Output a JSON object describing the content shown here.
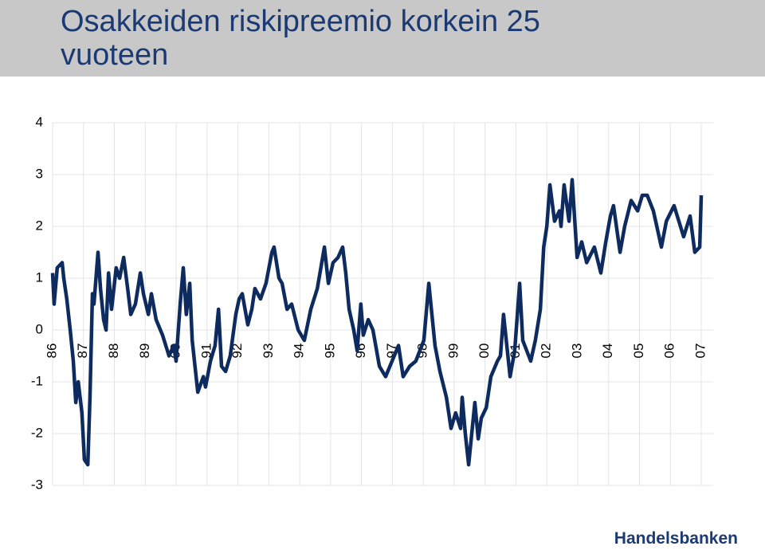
{
  "chart_data": {
    "type": "line",
    "title": "Osakkeiden riskipreemio korkein 25 vuoteen",
    "source": "Handelsbanken",
    "xlim": [
      1986,
      2007
    ],
    "ylim": [
      -3,
      4
    ],
    "xticks": [
      {
        "value": 1986,
        "label": "86"
      },
      {
        "value": 1987,
        "label": "87"
      },
      {
        "value": 1988,
        "label": "88"
      },
      {
        "value": 1989,
        "label": "89"
      },
      {
        "value": 1990,
        "label": "90"
      },
      {
        "value": 1991,
        "label": "91"
      },
      {
        "value": 1992,
        "label": "92"
      },
      {
        "value": 1993,
        "label": "93"
      },
      {
        "value": 1994,
        "label": "94"
      },
      {
        "value": 1995,
        "label": "95"
      },
      {
        "value": 1996,
        "label": "96"
      },
      {
        "value": 1997,
        "label": "97"
      },
      {
        "value": 1998,
        "label": "98"
      },
      {
        "value": 1999,
        "label": "99"
      },
      {
        "value": 2000,
        "label": "00"
      },
      {
        "value": 2001,
        "label": "01"
      },
      {
        "value": 2002,
        "label": "02"
      },
      {
        "value": 2003,
        "label": "03"
      },
      {
        "value": 2004,
        "label": "04"
      },
      {
        "value": 2005,
        "label": "05"
      },
      {
        "value": 2006,
        "label": "06"
      },
      {
        "value": 2007,
        "label": "07"
      }
    ],
    "yticks": [
      -3,
      -2,
      -1,
      0,
      1,
      2,
      3,
      4
    ],
    "grid": true,
    "color": "#0d2b5e",
    "x": [
      1986.0,
      1986.05,
      1986.15,
      1986.31,
      1986.36,
      1986.46,
      1986.57,
      1986.67,
      1986.75,
      1986.83,
      1986.95,
      1987.03,
      1987.14,
      1987.21,
      1987.29,
      1987.34,
      1987.47,
      1987.55,
      1987.65,
      1987.73,
      1987.81,
      1987.91,
      1988.06,
      1988.17,
      1988.3,
      1988.43,
      1988.53,
      1988.68,
      1988.84,
      1988.94,
      1989.1,
      1989.2,
      1989.35,
      1989.56,
      1989.77,
      1989.92,
      1990.0,
      1990.13,
      1990.23,
      1990.33,
      1990.44,
      1990.52,
      1990.7,
      1990.88,
      1990.95,
      1991.11,
      1991.26,
      1991.37,
      1991.47,
      1991.6,
      1991.75,
      1991.93,
      1992.04,
      1992.14,
      1992.32,
      1992.45,
      1992.55,
      1992.73,
      1992.91,
      1993.1,
      1993.17,
      1993.33,
      1993.43,
      1993.59,
      1993.74,
      1993.95,
      1994.15,
      1994.36,
      1994.57,
      1994.8,
      1994.93,
      1995.08,
      1995.24,
      1995.39,
      1995.49,
      1995.6,
      1995.75,
      1995.86,
      1995.98,
      1996.06,
      1996.22,
      1996.37,
      1996.58,
      1996.78,
      1996.99,
      1997.2,
      1997.35,
      1997.56,
      1997.76,
      1998.02,
      1998.18,
      1998.28,
      1998.38,
      1998.54,
      1998.75,
      1998.9,
      1999.05,
      1999.21,
      1999.26,
      1999.36,
      1999.47,
      1999.67,
      1999.78,
      1999.88,
      2000.04,
      2000.19,
      2000.4,
      2000.5,
      2000.6,
      2000.81,
      2000.96,
      2001.12,
      2001.22,
      2001.48,
      2001.63,
      2001.79,
      2001.9,
      2002.0,
      2002.1,
      2002.25,
      2002.41,
      2002.46,
      2002.56,
      2002.72,
      2002.82,
      2002.98,
      2003.13,
      2003.29,
      2003.54,
      2003.75,
      2003.91,
      2004.06,
      2004.16,
      2004.37,
      2004.52,
      2004.73,
      2004.94,
      2005.09,
      2005.25,
      2005.45,
      2005.71,
      2005.87,
      2006.12,
      2006.43,
      2006.64,
      2006.79,
      2006.95,
      2007.0
    ],
    "values": [
      1.1,
      0.5,
      1.2,
      1.3,
      1.0,
      0.6,
      0.0,
      -0.6,
      -1.4,
      -1.0,
      -1.6,
      -2.5,
      -2.6,
      -1.3,
      0.7,
      0.5,
      1.5,
      0.8,
      0.2,
      0.0,
      1.1,
      0.4,
      1.2,
      1.0,
      1.4,
      0.8,
      0.3,
      0.5,
      1.1,
      0.7,
      0.3,
      0.7,
      0.2,
      -0.1,
      -0.5,
      -0.3,
      -0.6,
      0.5,
      1.2,
      0.3,
      0.9,
      -0.2,
      -1.2,
      -0.9,
      -1.1,
      -0.6,
      -0.3,
      0.4,
      -0.7,
      -0.8,
      -0.5,
      0.3,
      0.6,
      0.7,
      0.1,
      0.4,
      0.8,
      0.6,
      0.9,
      1.5,
      1.6,
      1.0,
      0.9,
      0.4,
      0.5,
      0.0,
      -0.2,
      0.4,
      0.8,
      1.6,
      0.9,
      1.3,
      1.4,
      1.6,
      1.1,
      0.4,
      0.0,
      -0.4,
      0.5,
      -0.1,
      0.2,
      0.0,
      -0.7,
      -0.9,
      -0.6,
      -0.3,
      -0.9,
      -0.7,
      -0.6,
      -0.2,
      0.9,
      0.3,
      -0.3,
      -0.8,
      -1.3,
      -1.9,
      -1.6,
      -1.9,
      -1.3,
      -2.0,
      -2.6,
      -1.4,
      -2.1,
      -1.7,
      -1.5,
      -0.9,
      -0.6,
      -0.5,
      0.3,
      -0.9,
      -0.4,
      0.9,
      -0.2,
      -0.6,
      -0.2,
      0.4,
      1.6,
      2.0,
      2.8,
      2.1,
      2.3,
      2.0,
      2.8,
      2.1,
      2.9,
      1.4,
      1.7,
      1.3,
      1.6,
      1.1,
      1.7,
      2.2,
      2.4,
      1.5,
      2.0,
      2.5,
      2.3,
      2.6,
      2.6,
      2.3,
      1.6,
      2.1,
      2.4,
      1.8,
      2.2,
      1.5,
      1.6,
      2.6
    ]
  }
}
